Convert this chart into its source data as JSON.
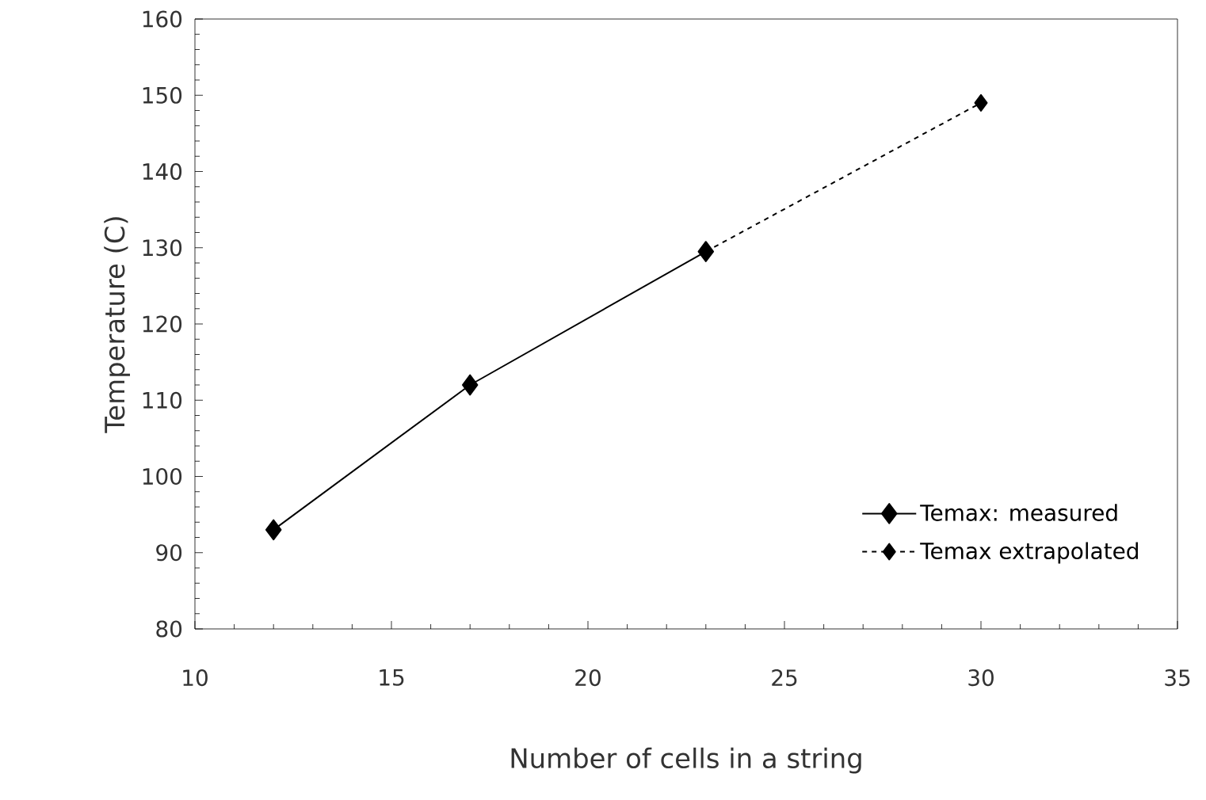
{
  "chart_data": {
    "type": "line",
    "xlabel": "Number of cells in a string",
    "ylabel": "Temperature (C)",
    "xlim": [
      10,
      35
    ],
    "xticks": [
      10,
      15,
      20,
      25,
      30,
      35
    ],
    "ylim": [
      80,
      160
    ],
    "yticks": [
      80,
      90,
      100,
      110,
      120,
      130,
      140,
      150,
      160
    ],
    "grid": false,
    "legend": "bottom right",
    "marker": "diamond",
    "series": [
      {
        "name": "Temax: measured",
        "color": "#000000",
        "x": [
          12,
          17,
          23
        ],
        "values": [
          93,
          112,
          129.5
        ],
        "line_style": "solid"
      },
      {
        "name": "Temax extrapolated",
        "color": "#000000",
        "x": [
          23,
          30
        ],
        "values": [
          129.5,
          149
        ],
        "line_style": "dashed"
      }
    ]
  }
}
